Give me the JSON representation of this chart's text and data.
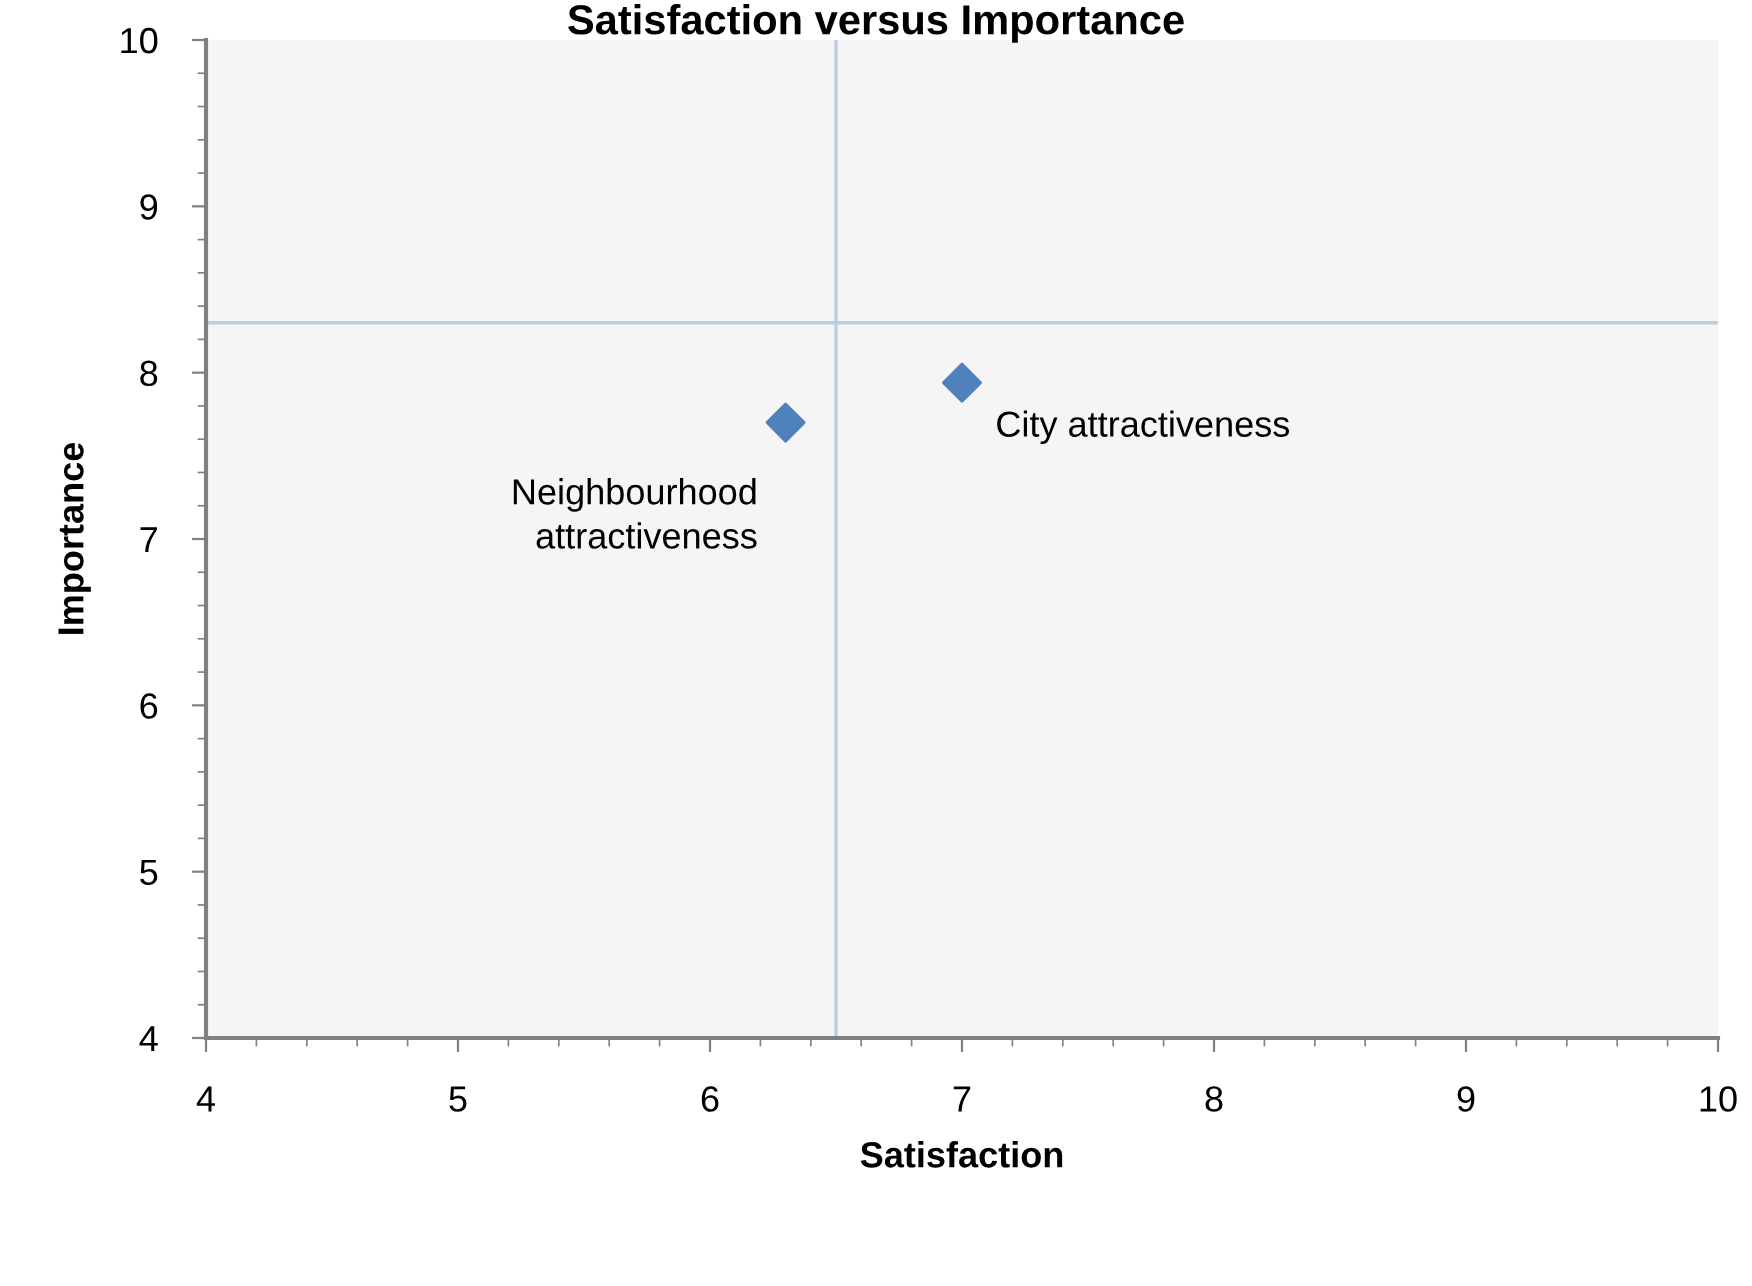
{
  "chart_data": {
    "type": "scatter",
    "title": "Satisfaction versus Importance",
    "xlabel": "Satisfaction",
    "ylabel": "Importance",
    "x": [
      6.3,
      7.0
    ],
    "series": [
      {
        "color": "#4f81bd",
        "values": [
          7.7,
          7.94
        ]
      }
    ],
    "annotations": [
      {
        "text": "Neighbourhood\nattractiveness",
        "x": 6.3,
        "y": 7.7
      },
      {
        "text": "City attractiveness",
        "x": 7.0,
        "y": 7.94
      }
    ],
    "ref_lines": [
      {
        "axis": "x",
        "value": 6.5,
        "color": "#b9cde5"
      },
      {
        "axis": "y",
        "value": 8.3,
        "color": "#b9cde5"
      }
    ],
    "xlim": [
      4,
      10
    ],
    "ylim": [
      4,
      10
    ],
    "xticks": [
      4,
      5,
      6,
      7,
      8,
      9,
      10
    ],
    "yticks": [
      4,
      5,
      6,
      7,
      8,
      9,
      10
    ],
    "marker": "diamond",
    "grid": false,
    "legend": false
  }
}
